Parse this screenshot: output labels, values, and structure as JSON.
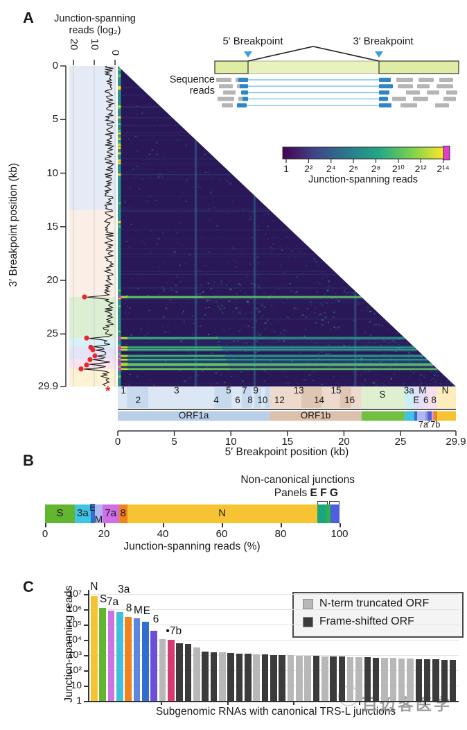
{
  "panelA": {
    "label": "A",
    "marginal": {
      "title_line1": "Junction-spanning",
      "title_line2": "reads (log₂)",
      "ticks": [
        "20",
        "10",
        "0"
      ]
    },
    "y_axis": {
      "title": "3′ Breakpoint position (kb)",
      "tick_labels": [
        "0",
        "5",
        "10",
        "15",
        "20",
        "25",
        "29.9"
      ],
      "tick_kb": [
        0,
        5,
        10,
        15,
        20,
        25,
        29.9
      ]
    },
    "x_axis": {
      "title": "5′ Breakpoint position (kb)",
      "tick_labels": [
        "0",
        "5",
        "10",
        "15",
        "20",
        "25",
        "29.9"
      ],
      "tick_kb": [
        0,
        5,
        10,
        15,
        20,
        25,
        29.9
      ]
    },
    "trsl_marker": "*",
    "inset": {
      "bp5_label": "5′ Breakpoint",
      "bp3_label": "3′ Breakpoint",
      "seq_line1": "Sequence",
      "seq_line2": "reads",
      "breakpoint_color": "#3D9FD8",
      "genome_fill": "#E9F2BC",
      "genome_edge_fill": "#DFEDA4",
      "read_gray": "#B5B5B5",
      "read_blue": "#2E86C8",
      "read_line_blue": "#7EC2E8"
    },
    "colorbar": {
      "title": "Junction-spanning reads",
      "tick_labels": [
        "1",
        "2²",
        "2⁴",
        "2⁶",
        "2⁸",
        "2¹⁰",
        "2¹²",
        "2¹⁴"
      ],
      "gradient": [
        "#440154",
        "#414487",
        "#2A788E",
        "#22A884",
        "#7AD151",
        "#FDE725"
      ],
      "overflow_color": "#E23BD0"
    },
    "annotation": {
      "orf1a_bounds_kb": [
        0,
        0.8,
        2.7,
        8.55,
        10.05,
        10.97,
        11.84,
        12.09,
        12.69,
        13.02,
        13.44
      ],
      "orf1a_alt_colors": [
        "#DBE7F5",
        "#C6D9EE"
      ],
      "orf1b_bounds_kb": [
        13.44,
        16.24,
        18.04,
        19.62,
        20.66,
        21.55
      ],
      "orf1b_alt_colors": [
        "#EDDACD",
        "#DFC6B3"
      ],
      "structural_bands": [
        {
          "s": 21.55,
          "e": 25.38,
          "color": "#DFF0D0"
        },
        {
          "s": 25.38,
          "e": 26.22,
          "color": "#CDEEF7"
        },
        {
          "s": 26.22,
          "e": 27.39,
          "color": "#E4DEF6"
        },
        {
          "s": 27.39,
          "e": 28.26,
          "color": "#F8DFE9"
        },
        {
          "s": 28.26,
          "e": 29.9,
          "color": "#FCEDBA"
        }
      ],
      "nsp_labels": [
        {
          "label": "1",
          "kb": 0.5,
          "row": "top"
        },
        {
          "label": "2",
          "kb": 1.8,
          "row": "bottom"
        },
        {
          "label": "3",
          "kb": 5.2,
          "row": "top"
        },
        {
          "label": "4",
          "kb": 8.7,
          "row": "bottom"
        },
        {
          "label": "5",
          "kb": 9.8,
          "row": "top"
        },
        {
          "label": "6",
          "kb": 10.6,
          "row": "bottom"
        },
        {
          "label": "7",
          "kb": 11.2,
          "row": "top"
        },
        {
          "label": "8",
          "kb": 11.7,
          "row": "bottom"
        },
        {
          "label": "9",
          "kb": 12.2,
          "row": "top"
        },
        {
          "label": "10",
          "kb": 12.8,
          "row": "bottom"
        },
        {
          "label": "12",
          "kb": 14.3,
          "row": "bottom"
        },
        {
          "label": "13",
          "kb": 16.0,
          "row": "top"
        },
        {
          "label": "14",
          "kb": 17.8,
          "row": "bottom"
        },
        {
          "label": "15",
          "kb": 19.3,
          "row": "top"
        },
        {
          "label": "16",
          "kb": 20.5,
          "row": "bottom"
        },
        {
          "label": "S",
          "kb": 23.4,
          "row": "mid"
        },
        {
          "label": "3a",
          "kb": 25.75,
          "row": "top"
        },
        {
          "label": "E",
          "kb": 26.4,
          "row": "bottom"
        },
        {
          "label": "M",
          "kb": 26.95,
          "row": "top"
        },
        {
          "label": "6",
          "kb": 27.25,
          "row": "bottom"
        },
        {
          "label": "8",
          "kb": 27.95,
          "row": "bottom"
        },
        {
          "label": "N",
          "kb": 28.95,
          "row": "top"
        }
      ],
      "orf_bar_segments": [
        {
          "label": "ORF1a",
          "s": 0,
          "e": 13.44,
          "color": "#B9CFE9",
          "show_label": true
        },
        {
          "label": "ORF1b",
          "s": 13.44,
          "e": 21.55,
          "color": "#DCC0AB",
          "show_label": true
        },
        {
          "label": "S",
          "s": 21.55,
          "e": 25.38,
          "color": "#72BF44",
          "show_label": false
        },
        {
          "label": "3a",
          "s": 25.38,
          "e": 26.22,
          "color": "#3FC3E3",
          "show_label": false
        },
        {
          "label": "E",
          "s": 26.22,
          "e": 26.47,
          "color": "#2F6FD0",
          "show_label": false
        },
        {
          "label": "M",
          "s": 26.47,
          "e": 27.19,
          "color": "#B2B8EE",
          "show_label": false
        },
        {
          "label": "6",
          "s": 27.19,
          "e": 27.39,
          "color": "#8F97E8",
          "show_label": false
        },
        {
          "label": "7a",
          "s": 27.39,
          "e": 27.76,
          "color": "#5561D6",
          "show_label": false
        },
        {
          "label": "7b",
          "s": 27.76,
          "e": 27.9,
          "color": "#C9A2EA",
          "show_label": false
        },
        {
          "label": "8",
          "s": 27.9,
          "e": 28.26,
          "color": "#F0831C",
          "show_label": false
        },
        {
          "label": "N",
          "s": 28.26,
          "e": 29.9,
          "color": "#F6C433",
          "show_label": false
        }
      ],
      "sub_label": "7a 7b"
    }
  },
  "panelB": {
    "label": "B",
    "annotation_line": "Non-canonical junctions",
    "panels_word": "Panels",
    "panels_letters": [
      "E",
      "F",
      "G"
    ],
    "x_axis": {
      "title": "Junction-spanning reads (%)",
      "tick_labels": [
        "0",
        "20",
        "40",
        "60",
        "80",
        "100"
      ],
      "tick_pct": [
        0,
        20,
        40,
        60,
        80,
        100
      ]
    }
  },
  "panelC": {
    "label": "C",
    "y_axis": {
      "title": "Junction-spanning reads",
      "tick_labels": [
        "10⁷",
        "10⁶",
        "10⁵",
        "10⁴",
        "10³",
        "10²",
        "10",
        "1"
      ],
      "tick_exp": [
        7,
        6,
        5,
        4,
        3,
        2,
        1,
        0
      ]
    },
    "x_axis": {
      "title": "Subgenomic RNAs with canonical TRS-L junctions"
    },
    "legend": [
      {
        "label": "N-term truncated ORF",
        "color": "#B8B8B8"
      },
      {
        "label": "Frame-shifted ORF",
        "color": "#3B3B3B"
      }
    ],
    "bar_labels": [
      {
        "text": "N",
        "i": 0,
        "y": 838,
        "dx": 0
      },
      {
        "text": "S",
        "i": 1,
        "y": 856,
        "dx": 1
      },
      {
        "text": "7a",
        "i": 2,
        "y": 860,
        "dx": 2
      },
      {
        "text": "3a",
        "i": 3,
        "y": 842,
        "dx": 6
      },
      {
        "text": "8",
        "i": 4,
        "y": 869,
        "dx": 1
      },
      {
        "text": "M",
        "i": 5,
        "y": 872,
        "dx": 2
      },
      {
        "text": "E",
        "i": 6,
        "y": 873,
        "dx": 2
      },
      {
        "text": "6",
        "i": 7,
        "y": 885,
        "dx": 3
      },
      {
        "text": "•7b",
        "i": 9,
        "y": 902,
        "dx": 4
      }
    ]
  },
  "watermark": {
    "text": "百迈客医学"
  },
  "chart_data": [
    {
      "id": "A",
      "type": "heatmap",
      "xlabel": "5′ Breakpoint position (kb)",
      "ylabel": "3′ Breakpoint position (kb)",
      "xlim": [
        0,
        29.9
      ],
      "ylim": [
        0,
        29.9
      ],
      "x_ticks": [
        0,
        5,
        10,
        15,
        20,
        25,
        29.9
      ],
      "y_ticks": [
        0,
        5,
        10,
        15,
        20,
        25,
        29.9
      ],
      "colorbar_label": "Junction-spanning reads",
      "colorbar_ticks": [
        "1",
        "2²",
        "2⁴",
        "2⁶",
        "2⁸",
        "2¹⁰",
        "2¹²",
        "2¹⁴"
      ],
      "marginal_label": "Junction-spanning reads (log₂)",
      "marginal_ticks": [
        20,
        10,
        0
      ],
      "canonical_3p_junctions_kb": [
        21.55,
        25.38,
        26.24,
        26.47,
        27.04,
        27.39,
        27.76,
        27.89,
        28.26
      ],
      "red_dot_junctions_kb": [
        21.55,
        25.38,
        26.24,
        26.47,
        27.04,
        27.39,
        27.89,
        28.26
      ],
      "trs_l_5p_column_kb": 0.07,
      "faint_vertical_columns_kb": [
        6.9,
        12.1,
        21.0
      ],
      "base_color": "#2A1758",
      "hot_row_color": "#2BA08E"
    },
    {
      "id": "B",
      "type": "stacked_bar_horizontal",
      "xlabel": "Junction-spanning reads (%)",
      "x_ticks": [
        0,
        20,
        40,
        60,
        80,
        100
      ],
      "segments": [
        {
          "label": "S",
          "pct": 10.1,
          "color": "#62B52F",
          "label_pos": "in"
        },
        {
          "label": "3a",
          "pct": 5.4,
          "color": "#40C4E4",
          "label_pos": "in"
        },
        {
          "label": "E",
          "pct": 1.4,
          "color": "#2F6FD0",
          "label_pos": "above"
        },
        {
          "label": "M",
          "pct": 2.6,
          "color": "#AFB7EE",
          "label_pos": "below"
        },
        {
          "label": "7a",
          "pct": 5.6,
          "color": "#CF6FE8",
          "label_pos": "in"
        },
        {
          "label": "8",
          "pct": 2.8,
          "color": "#F0831C",
          "label_pos": "in"
        },
        {
          "label": "N",
          "pct": 64.5,
          "color": "#F6C433",
          "label_pos": "in"
        },
        {
          "label": "",
          "pct": 3.1,
          "color": "#18A77E",
          "label_pos": "none"
        },
        {
          "label": "",
          "pct": 1.4,
          "color": "#2FB24C",
          "label_pos": "none"
        },
        {
          "label": "",
          "pct": 3.1,
          "color": "#4E5EDC",
          "label_pos": "none"
        }
      ],
      "annotation": "Non-canonical junctions, Panels E F G bracket the last segments"
    },
    {
      "id": "C",
      "type": "bar",
      "ylabel": "Junction-spanning reads",
      "xlabel": "Subgenomic RNAs with canonical TRS-L junctions",
      "ylog": true,
      "ylim": [
        1,
        10000000
      ],
      "y_ticks": [
        "10⁷",
        "10⁶",
        "10⁵",
        "10⁴",
        "10³",
        "10²",
        "10",
        "1"
      ],
      "legend": [
        "N-term truncated ORF",
        "Frame-shifted ORF"
      ],
      "colors": {
        "N": "#F6C433",
        "S": "#62B52F",
        "7a": "#CC73E6",
        "3a": "#3FC0DC",
        "8": "#F0831C",
        "M": "#5B87DE",
        "E": "#2F6FD0",
        "6": "#6C4FD8",
        "7b": "#D63A6E",
        "gray": "#B8B8B8",
        "light": "#B8B8B8",
        "dark": "#3B3B3B"
      },
      "bars": [
        {
          "name": "N",
          "v": 7000000
        },
        {
          "name": "S",
          "v": 1200000
        },
        {
          "name": "7a",
          "v": 800000
        },
        {
          "name": "3a",
          "v": 650000
        },
        {
          "name": "8",
          "v": 320000
        },
        {
          "name": "M",
          "v": 260000
        },
        {
          "name": "E",
          "v": 150000
        },
        {
          "name": "6",
          "v": 40000
        },
        {
          "name": "gray",
          "v": 11500
        },
        {
          "name": "7b",
          "v": 9500
        },
        {
          "name": "dark",
          "v": 6000
        },
        {
          "name": "dark",
          "v": 5600
        },
        {
          "name": "light",
          "v": 3100
        },
        {
          "name": "dark",
          "v": 1700
        },
        {
          "name": "dark",
          "v": 1600
        },
        {
          "name": "light",
          "v": 1500
        },
        {
          "name": "dark",
          "v": 1300
        },
        {
          "name": "dark",
          "v": 1250
        },
        {
          "name": "dark",
          "v": 1200
        },
        {
          "name": "light",
          "v": 1150
        },
        {
          "name": "dark",
          "v": 1100
        },
        {
          "name": "dark",
          "v": 1050
        },
        {
          "name": "dark",
          "v": 1000
        },
        {
          "name": "light",
          "v": 950
        },
        {
          "name": "light",
          "v": 920
        },
        {
          "name": "light",
          "v": 900
        },
        {
          "name": "dark",
          "v": 870
        },
        {
          "name": "light",
          "v": 850
        },
        {
          "name": "dark",
          "v": 800
        },
        {
          "name": "dark",
          "v": 780
        },
        {
          "name": "light",
          "v": 760
        },
        {
          "name": "light",
          "v": 740
        },
        {
          "name": "dark",
          "v": 700
        },
        {
          "name": "dark",
          "v": 680
        },
        {
          "name": "light",
          "v": 660
        },
        {
          "name": "light",
          "v": 640
        },
        {
          "name": "light",
          "v": 620
        },
        {
          "name": "light",
          "v": 600
        },
        {
          "name": "dark",
          "v": 560
        },
        {
          "name": "dark",
          "v": 540
        },
        {
          "name": "dark",
          "v": 520
        },
        {
          "name": "dark",
          "v": 500
        },
        {
          "name": "dark",
          "v": 480
        }
      ]
    }
  ]
}
